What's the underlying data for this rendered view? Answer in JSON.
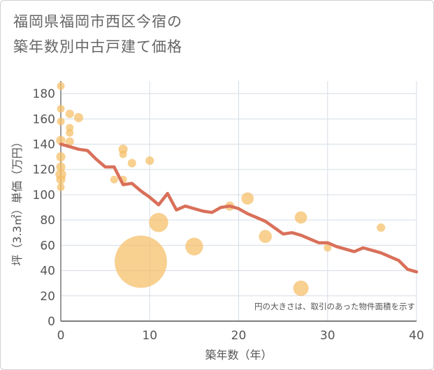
{
  "title_line1": "福岡県福岡市西区今宿の",
  "title_line2": "築年数別中古戸建て価格",
  "chart_data": {
    "type": "scatter",
    "title": "福岡県福岡市西区今宿の築年数別中古戸建て価格",
    "xlabel": "築年数（年）",
    "ylabel": "坪（3.3㎡）単価（万円）",
    "xlim": [
      0,
      40
    ],
    "ylim": [
      0,
      190
    ],
    "xticks": [
      0,
      10,
      20,
      30,
      40
    ],
    "yticks": [
      0,
      20,
      40,
      60,
      80,
      100,
      120,
      140,
      160,
      180
    ],
    "grid": true,
    "note": "円の大きさは、取引のあった物件面積を示す",
    "colors": {
      "bubble": "#f5c06b",
      "line": "#d9705a",
      "grid": "#d5dde6"
    },
    "bubbles": [
      {
        "x": 0,
        "y": 186,
        "size": 1
      },
      {
        "x": 0,
        "y": 168,
        "size": 1
      },
      {
        "x": 0,
        "y": 158,
        "size": 1
      },
      {
        "x": 0,
        "y": 143,
        "size": 1.2
      },
      {
        "x": 0,
        "y": 130,
        "size": 1.2
      },
      {
        "x": 0,
        "y": 122,
        "size": 1.2
      },
      {
        "x": 0,
        "y": 116,
        "size": 1.4
      },
      {
        "x": 0,
        "y": 112,
        "size": 1.2
      },
      {
        "x": 0,
        "y": 106,
        "size": 1
      },
      {
        "x": 1,
        "y": 164,
        "size": 1.1
      },
      {
        "x": 1,
        "y": 153,
        "size": 1
      },
      {
        "x": 1,
        "y": 149,
        "size": 1
      },
      {
        "x": 1,
        "y": 142,
        "size": 1.1
      },
      {
        "x": 2,
        "y": 161,
        "size": 1.2
      },
      {
        "x": 6,
        "y": 112,
        "size": 1
      },
      {
        "x": 7,
        "y": 136,
        "size": 1.2
      },
      {
        "x": 7,
        "y": 132,
        "size": 1
      },
      {
        "x": 7,
        "y": 112,
        "size": 1
      },
      {
        "x": 8,
        "y": 125,
        "size": 1.1
      },
      {
        "x": 9,
        "y": 47,
        "size": 6.8
      },
      {
        "x": 10,
        "y": 127,
        "size": 1.1
      },
      {
        "x": 11,
        "y": 78,
        "size": 2.5
      },
      {
        "x": 15,
        "y": 59,
        "size": 2.3
      },
      {
        "x": 19,
        "y": 91,
        "size": 1.2
      },
      {
        "x": 21,
        "y": 97,
        "size": 1.6
      },
      {
        "x": 23,
        "y": 67,
        "size": 1.7
      },
      {
        "x": 27,
        "y": 82,
        "size": 1.6
      },
      {
        "x": 27,
        "y": 26,
        "size": 2
      },
      {
        "x": 30,
        "y": 58,
        "size": 1
      },
      {
        "x": 36,
        "y": 74,
        "size": 1.1
      }
    ],
    "line": {
      "x": [
        0,
        1,
        2,
        3,
        4,
        5,
        6,
        7,
        8,
        9,
        10,
        11,
        12,
        13,
        14,
        15,
        16,
        17,
        18,
        19,
        20,
        21,
        22,
        23,
        24,
        25,
        26,
        27,
        28,
        29,
        30,
        31,
        32,
        33,
        34,
        35,
        36,
        37,
        38,
        39,
        40
      ],
      "y": [
        140,
        138,
        136,
        135,
        128,
        122,
        122,
        108,
        109,
        103,
        98,
        92,
        101,
        88,
        91,
        89,
        87,
        86,
        90,
        91,
        89,
        85,
        82,
        79,
        74,
        69,
        70,
        68,
        65,
        62,
        62,
        59,
        57,
        55,
        58,
        56,
        54,
        51,
        48,
        41,
        39
      ]
    }
  }
}
